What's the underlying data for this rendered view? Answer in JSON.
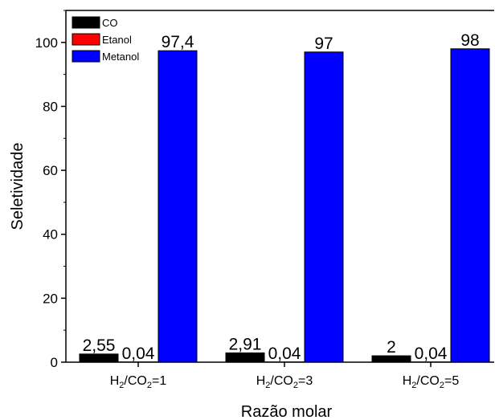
{
  "chart_data": {
    "type": "bar",
    "title": "",
    "xlabel": "Razão molar",
    "ylabel": "Seletividade",
    "ylim": [
      0,
      110
    ],
    "yticks": [
      0,
      20,
      40,
      60,
      80,
      100
    ],
    "categories": [
      {
        "base": "H",
        "sub1": "2",
        "mid": "/CO",
        "sub2": "2",
        "tail": "=1"
      },
      {
        "base": "H",
        "sub1": "2",
        "mid": "/CO",
        "sub2": "2",
        "tail": "=3"
      },
      {
        "base": "H",
        "sub1": "2",
        "mid": "/CO",
        "sub2": "2",
        "tail": "=5"
      }
    ],
    "series": [
      {
        "name": "CO",
        "color": "#000000",
        "values": [
          2.55,
          2.91,
          2.0
        ],
        "labels": [
          "2,55",
          "2,91",
          "2"
        ]
      },
      {
        "name": "Etanol",
        "color": "#ff0000",
        "values": [
          0.04,
          0.04,
          0.04
        ],
        "labels": [
          "0,04",
          "0,04",
          "0,04"
        ]
      },
      {
        "name": "Metanol",
        "color": "#0000ff",
        "values": [
          97.4,
          97.0,
          98.0
        ],
        "labels": [
          "97,4",
          "97",
          "98"
        ]
      }
    ],
    "legend_position": "top-left",
    "grid": false
  }
}
